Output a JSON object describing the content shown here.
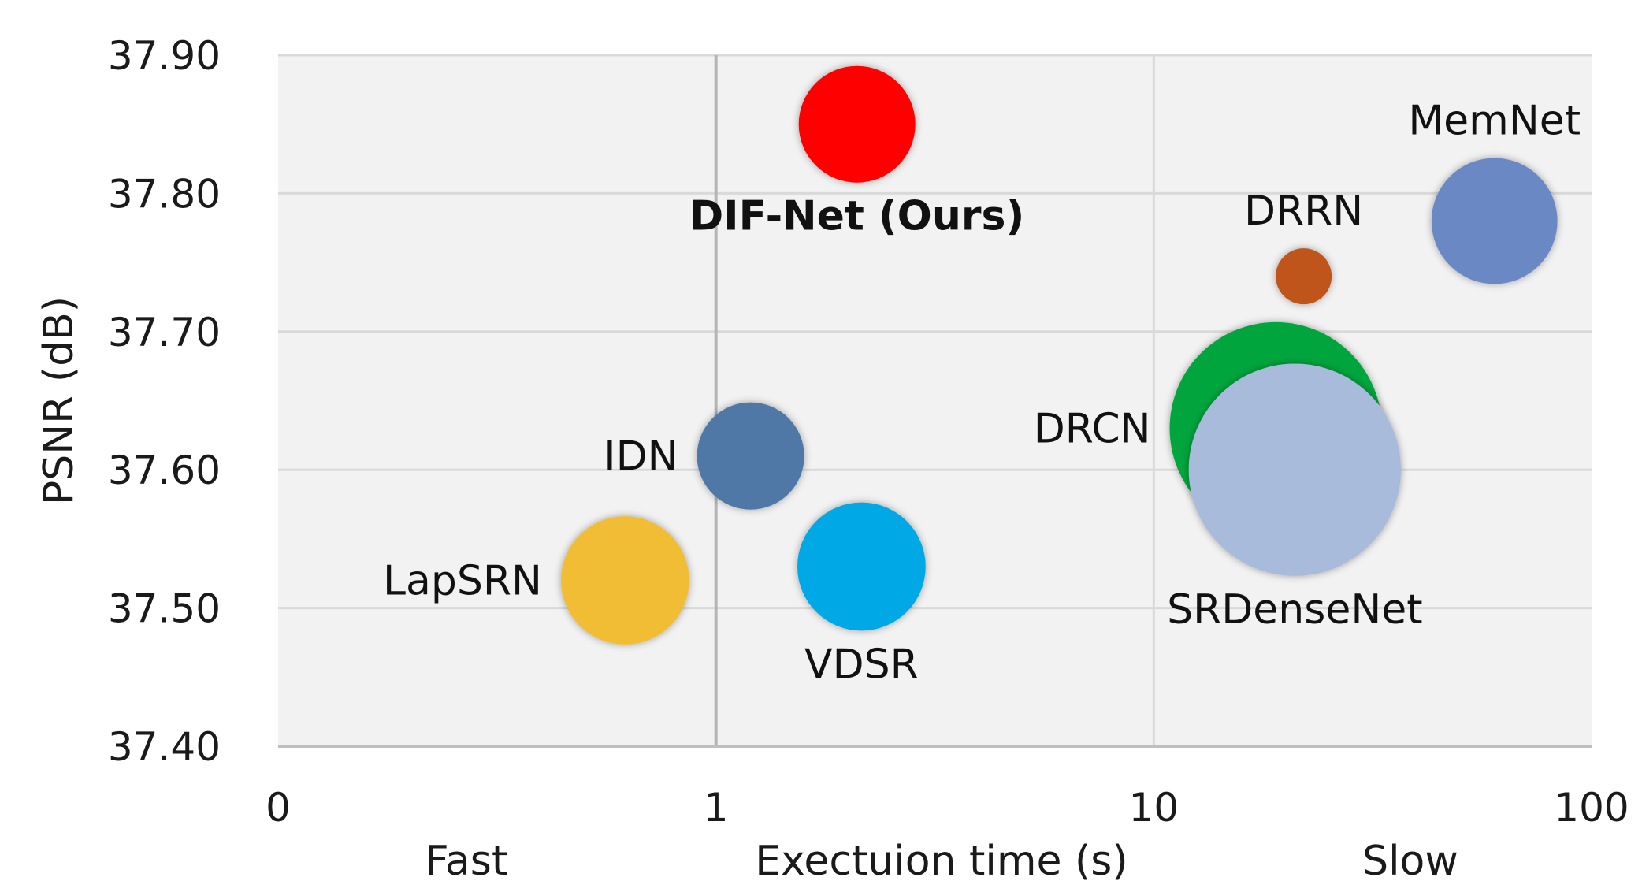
{
  "chart_data": {
    "type": "scatter",
    "variant": "bubble",
    "xlabel": "Exectuion time (s)",
    "ylabel": "PSNR (dB)",
    "x_scale": "log10",
    "x_ticks": [
      0.1,
      1,
      10,
      100
    ],
    "x_tick_labels": [
      "0",
      "1",
      "10",
      "100"
    ],
    "x_annotations": {
      "left": "Fast",
      "right": "Slow"
    },
    "xlim": [
      0.1,
      100
    ],
    "ylim": [
      37.4,
      37.9
    ],
    "y_ticks": [
      37.4,
      37.5,
      37.6,
      37.7,
      37.8,
      37.9
    ],
    "y_tick_labels": [
      "37.40",
      "37.50",
      "37.60",
      "37.70",
      "37.80",
      "37.90"
    ],
    "grid": true,
    "background_color": "#f2f2f2",
    "grid_color": "#d9d9d9",
    "bubbles": [
      {
        "label": "DIF-Net (Ours)",
        "x": 2.1,
        "y": 37.85,
        "size": 1.0,
        "color": "#ff0000",
        "label_bold": true,
        "label_position": "below"
      },
      {
        "label": "MemNet",
        "x": 60,
        "y": 37.78,
        "size": 1.08,
        "color": "#6a89c4",
        "label_bold": false,
        "label_position": "above"
      },
      {
        "label": "DRRN",
        "x": 22,
        "y": 37.74,
        "size": 0.48,
        "color": "#c0541a",
        "label_bold": false,
        "label_position": "above"
      },
      {
        "label": "DRCN",
        "x": 19,
        "y": 37.63,
        "size": 1.82,
        "color": "#00a63e",
        "label_bold": false,
        "label_position": "left"
      },
      {
        "label": "SRDenseNet",
        "x": 21,
        "y": 37.6,
        "size": 1.82,
        "color": "#a9bbdb",
        "label_bold": false,
        "label_position": "below"
      },
      {
        "label": "IDN",
        "x": 1.2,
        "y": 37.61,
        "size": 0.92,
        "color": "#4f78a6",
        "label_bold": false,
        "label_position": "left"
      },
      {
        "label": "LapSRN",
        "x": 0.62,
        "y": 37.52,
        "size": 1.1,
        "color": "#f0bd35",
        "label_bold": false,
        "label_position": "left"
      },
      {
        "label": "VDSR",
        "x": 2.15,
        "y": 37.53,
        "size": 1.1,
        "color": "#00a9e6",
        "label_bold": false,
        "label_position": "below"
      }
    ]
  }
}
